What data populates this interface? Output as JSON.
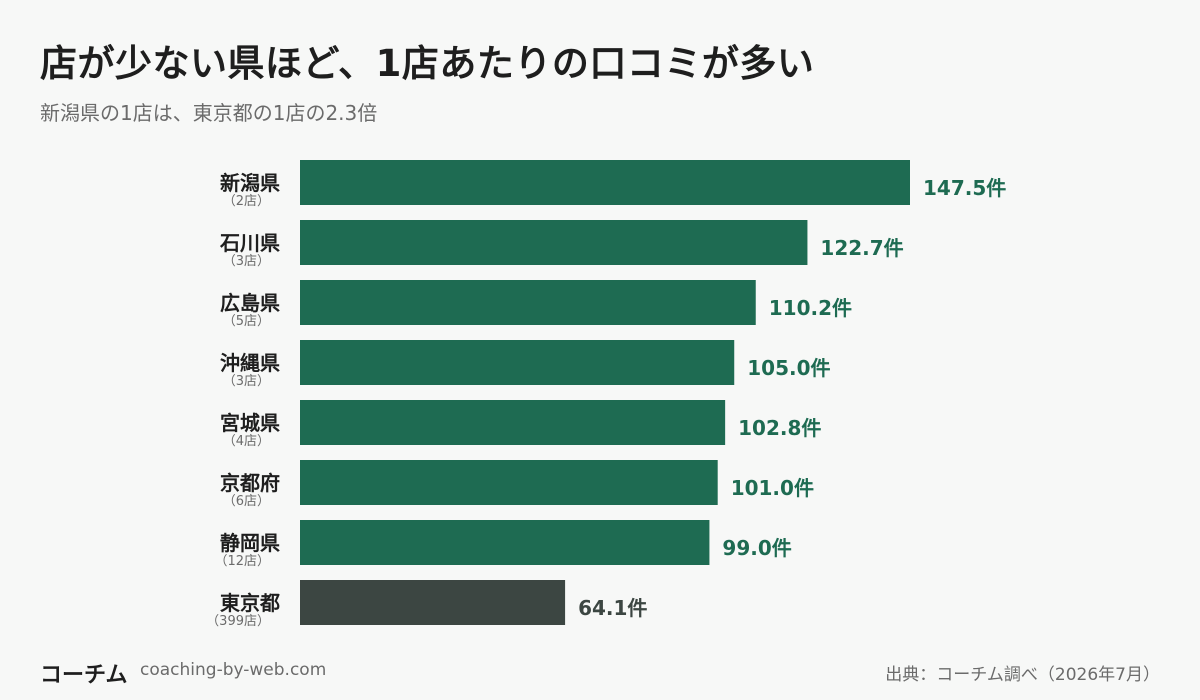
{
  "header": {
    "title": "店が少ない県ほど、1店あたりの口コミが多い",
    "subtitle": "新潟県の1店は、東京都の1店の2.3倍"
  },
  "footer": {
    "brand": "コーチム",
    "url": "coaching-by-web.com",
    "source": "出典：コーチム調べ（2026年7月）"
  },
  "colors": {
    "bar_default": "#1e6b52",
    "bar_highlight": "#3c4642",
    "value_default": "#1e6b52",
    "value_highlight": "#3c4642",
    "label": "#1e1e1e",
    "sublabel": "#6b6b6b"
  },
  "chart_data": {
    "type": "bar",
    "orientation": "horizontal",
    "value_suffix": "件",
    "categories": [
      "新潟県",
      "石川県",
      "広島県",
      "沖縄県",
      "宮城県",
      "京都府",
      "静岡県",
      "東京都"
    ],
    "category_notes": [
      "（2店）",
      "（3店）",
      "（5店）",
      "（3店）",
      "（4店）",
      "（6店）",
      "（12店）",
      "（399店）"
    ],
    "values": [
      147.5,
      122.7,
      110.2,
      105.0,
      102.8,
      101.0,
      99.0,
      64.1
    ],
    "value_labels": [
      "147.5件",
      "122.7件",
      "110.2件",
      "105.0件",
      "102.8件",
      "101.0件",
      "99.0件",
      "64.1件"
    ],
    "highlight": [
      false,
      false,
      false,
      false,
      false,
      false,
      false,
      true
    ],
    "xlim": [
      0,
      147.5
    ],
    "grid": false,
    "legend": "none"
  }
}
